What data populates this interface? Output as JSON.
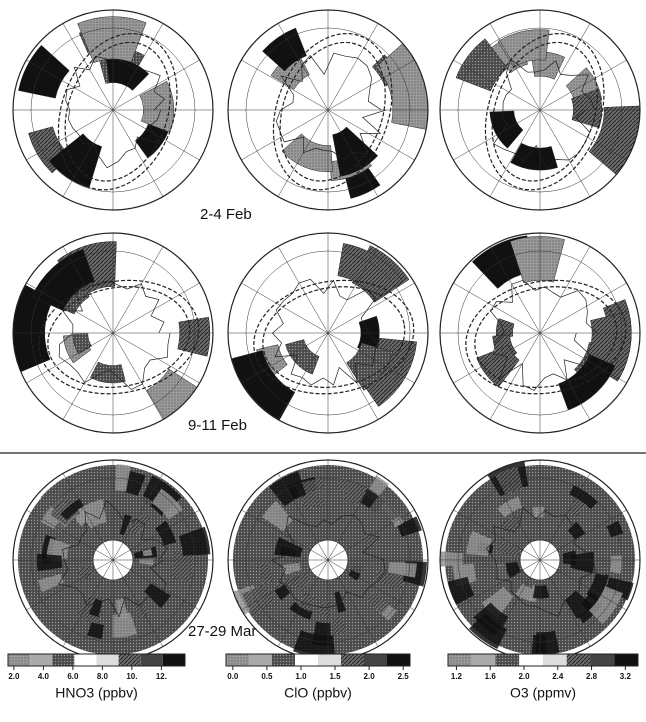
{
  "rows": [
    {
      "label": "2-4 Feb"
    },
    {
      "label": "9-11 Feb"
    },
    {
      "label": "27-29 Mar"
    }
  ],
  "colorbars": [
    {
      "title": "HNO3 (ppbv)",
      "range": [
        1.6,
        13.6
      ],
      "ticks": [
        {
          "value": 2,
          "label": "2.0"
        },
        {
          "value": 4,
          "label": "4.0"
        },
        {
          "value": 6,
          "label": "6.0"
        },
        {
          "value": 8,
          "label": "8.0"
        },
        {
          "value": 10,
          "label": "10."
        },
        {
          "value": 12,
          "label": "12."
        }
      ]
    },
    {
      "title": "ClO (ppbv)",
      "range": [
        -0.1,
        2.6
      ],
      "ticks": [
        {
          "value": 0,
          "label": "0.0"
        },
        0.5,
        {
          "value": 1,
          "label": "1.0"
        },
        1.5,
        {
          "value": 2,
          "label": "2.0"
        },
        2.5
      ]
    },
    {
      "title": "O3 (ppmv)",
      "range": [
        1.1,
        3.35
      ],
      "ticks": [
        1.2,
        1.6,
        {
          "value": 2,
          "label": "2.0"
        },
        2.4,
        2.8,
        3.2
      ]
    }
  ]
}
